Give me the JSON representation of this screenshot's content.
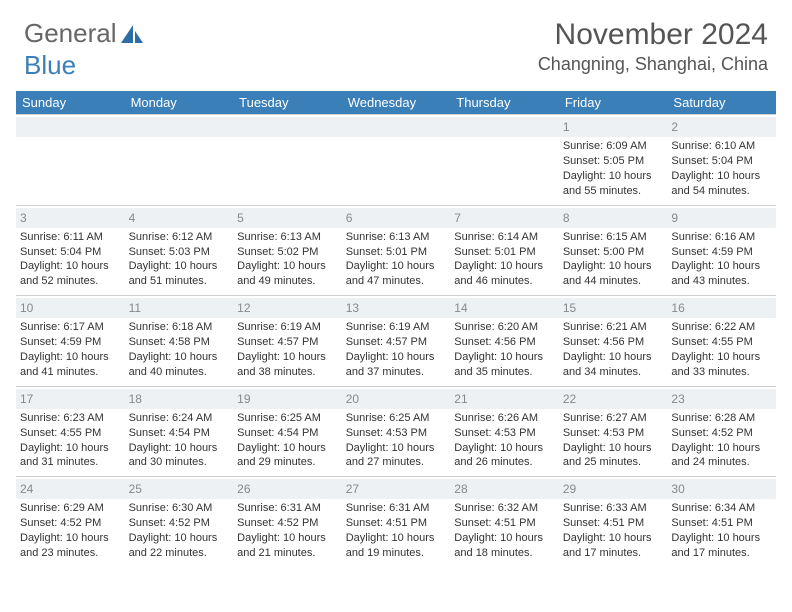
{
  "brand": {
    "part1": "General",
    "part2": "Blue"
  },
  "title": "November 2024",
  "location": "Changning, Shanghai, China",
  "colors": {
    "header_bg": "#3a7fb8",
    "header_text": "#ffffff",
    "daynum_bg": "#eef1f3",
    "daynum_text": "#888888",
    "body_text": "#333333",
    "rule": "#d0d0d0",
    "page_bg": "#ffffff"
  },
  "days_of_week": [
    "Sunday",
    "Monday",
    "Tuesday",
    "Wednesday",
    "Thursday",
    "Friday",
    "Saturday"
  ],
  "layout": {
    "first_weekday_index": 5,
    "num_days": 30,
    "columns": 7,
    "cell_fontsize_pt": 8,
    "dow_fontsize_pt": 10,
    "title_fontsize_pt": 22,
    "location_fontsize_pt": 14
  },
  "days": [
    {
      "n": 1,
      "sunrise": "6:09 AM",
      "sunset": "5:05 PM",
      "daylight": "10 hours and 55 minutes."
    },
    {
      "n": 2,
      "sunrise": "6:10 AM",
      "sunset": "5:04 PM",
      "daylight": "10 hours and 54 minutes."
    },
    {
      "n": 3,
      "sunrise": "6:11 AM",
      "sunset": "5:04 PM",
      "daylight": "10 hours and 52 minutes."
    },
    {
      "n": 4,
      "sunrise": "6:12 AM",
      "sunset": "5:03 PM",
      "daylight": "10 hours and 51 minutes."
    },
    {
      "n": 5,
      "sunrise": "6:13 AM",
      "sunset": "5:02 PM",
      "daylight": "10 hours and 49 minutes."
    },
    {
      "n": 6,
      "sunrise": "6:13 AM",
      "sunset": "5:01 PM",
      "daylight": "10 hours and 47 minutes."
    },
    {
      "n": 7,
      "sunrise": "6:14 AM",
      "sunset": "5:01 PM",
      "daylight": "10 hours and 46 minutes."
    },
    {
      "n": 8,
      "sunrise": "6:15 AM",
      "sunset": "5:00 PM",
      "daylight": "10 hours and 44 minutes."
    },
    {
      "n": 9,
      "sunrise": "6:16 AM",
      "sunset": "4:59 PM",
      "daylight": "10 hours and 43 minutes."
    },
    {
      "n": 10,
      "sunrise": "6:17 AM",
      "sunset": "4:59 PM",
      "daylight": "10 hours and 41 minutes."
    },
    {
      "n": 11,
      "sunrise": "6:18 AM",
      "sunset": "4:58 PM",
      "daylight": "10 hours and 40 minutes."
    },
    {
      "n": 12,
      "sunrise": "6:19 AM",
      "sunset": "4:57 PM",
      "daylight": "10 hours and 38 minutes."
    },
    {
      "n": 13,
      "sunrise": "6:19 AM",
      "sunset": "4:57 PM",
      "daylight": "10 hours and 37 minutes."
    },
    {
      "n": 14,
      "sunrise": "6:20 AM",
      "sunset": "4:56 PM",
      "daylight": "10 hours and 35 minutes."
    },
    {
      "n": 15,
      "sunrise": "6:21 AM",
      "sunset": "4:56 PM",
      "daylight": "10 hours and 34 minutes."
    },
    {
      "n": 16,
      "sunrise": "6:22 AM",
      "sunset": "4:55 PM",
      "daylight": "10 hours and 33 minutes."
    },
    {
      "n": 17,
      "sunrise": "6:23 AM",
      "sunset": "4:55 PM",
      "daylight": "10 hours and 31 minutes."
    },
    {
      "n": 18,
      "sunrise": "6:24 AM",
      "sunset": "4:54 PM",
      "daylight": "10 hours and 30 minutes."
    },
    {
      "n": 19,
      "sunrise": "6:25 AM",
      "sunset": "4:54 PM",
      "daylight": "10 hours and 29 minutes."
    },
    {
      "n": 20,
      "sunrise": "6:25 AM",
      "sunset": "4:53 PM",
      "daylight": "10 hours and 27 minutes."
    },
    {
      "n": 21,
      "sunrise": "6:26 AM",
      "sunset": "4:53 PM",
      "daylight": "10 hours and 26 minutes."
    },
    {
      "n": 22,
      "sunrise": "6:27 AM",
      "sunset": "4:53 PM",
      "daylight": "10 hours and 25 minutes."
    },
    {
      "n": 23,
      "sunrise": "6:28 AM",
      "sunset": "4:52 PM",
      "daylight": "10 hours and 24 minutes."
    },
    {
      "n": 24,
      "sunrise": "6:29 AM",
      "sunset": "4:52 PM",
      "daylight": "10 hours and 23 minutes."
    },
    {
      "n": 25,
      "sunrise": "6:30 AM",
      "sunset": "4:52 PM",
      "daylight": "10 hours and 22 minutes."
    },
    {
      "n": 26,
      "sunrise": "6:31 AM",
      "sunset": "4:52 PM",
      "daylight": "10 hours and 21 minutes."
    },
    {
      "n": 27,
      "sunrise": "6:31 AM",
      "sunset": "4:51 PM",
      "daylight": "10 hours and 19 minutes."
    },
    {
      "n": 28,
      "sunrise": "6:32 AM",
      "sunset": "4:51 PM",
      "daylight": "10 hours and 18 minutes."
    },
    {
      "n": 29,
      "sunrise": "6:33 AM",
      "sunset": "4:51 PM",
      "daylight": "10 hours and 17 minutes."
    },
    {
      "n": 30,
      "sunrise": "6:34 AM",
      "sunset": "4:51 PM",
      "daylight": "10 hours and 17 minutes."
    }
  ],
  "labels": {
    "sunrise": "Sunrise:",
    "sunset": "Sunset:",
    "daylight": "Daylight:"
  }
}
